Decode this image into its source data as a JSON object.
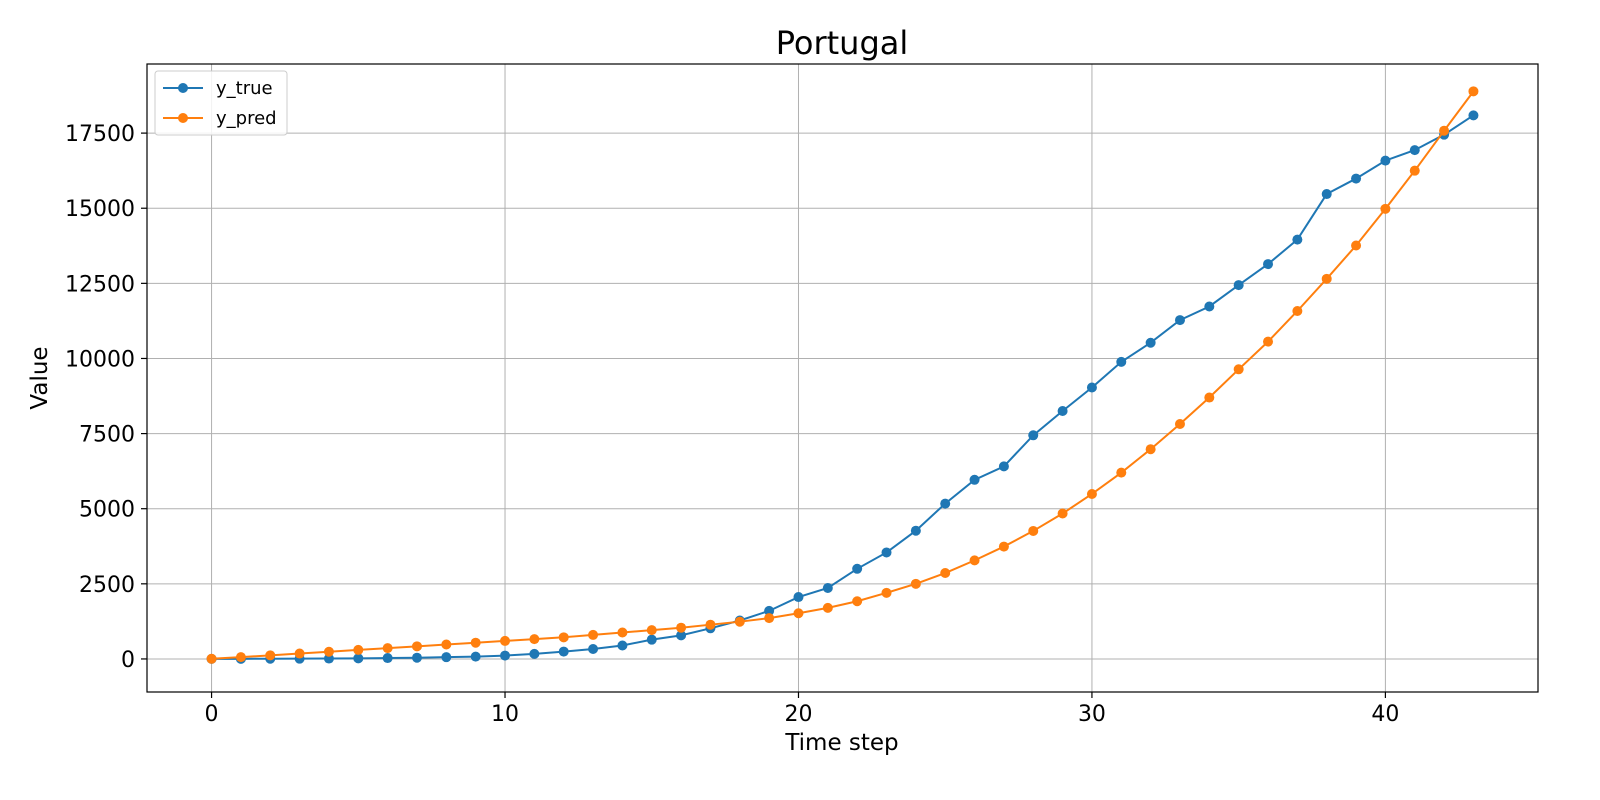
{
  "chart_data": {
    "type": "line",
    "title": "Portugal",
    "xlabel": "Time step",
    "ylabel": "Value",
    "xlim": [
      -2.2,
      45.2
    ],
    "ylim": [
      -1100,
      19800
    ],
    "xticks": [
      0,
      10,
      20,
      30,
      40
    ],
    "yticks": [
      0,
      2500,
      5000,
      7500,
      10000,
      12500,
      15000,
      17500
    ],
    "grid": true,
    "legend": "top-left",
    "x": [
      0,
      1,
      2,
      3,
      4,
      5,
      6,
      7,
      8,
      9,
      10,
      11,
      12,
      13,
      14,
      15,
      16,
      17,
      18,
      19,
      20,
      21,
      22,
      23,
      24,
      25,
      26,
      27,
      28,
      29,
      30,
      31,
      32,
      33,
      34,
      35,
      36,
      37,
      38,
      39,
      40,
      41,
      42,
      43
    ],
    "series": [
      {
        "name": "y_true",
        "color": "#1f77b4",
        "values": [
          2,
          4,
          6,
          9,
          13,
          21,
          30,
          41,
          59,
          78,
          112,
          169,
          245,
          331,
          448,
          642,
          785,
          1020,
          1280,
          1600,
          2060,
          2362,
          3000,
          3544,
          4268,
          5170,
          5962,
          6408,
          7443,
          8251,
          9034,
          9886,
          10524,
          11278,
          11730,
          12442,
          13141,
          13956,
          15472,
          15987,
          16585,
          16934,
          17448,
          18091
        ]
      },
      {
        "name": "y_pred",
        "color": "#ff7f0e",
        "values": [
          5,
          60,
          120,
          180,
          240,
          300,
          360,
          420,
          480,
          540,
          600,
          660,
          720,
          800,
          880,
          960,
          1040,
          1140,
          1240,
          1360,
          1520,
          1700,
          1920,
          2200,
          2500,
          2860,
          3280,
          3740,
          4260,
          4840,
          5490,
          6200,
          6980,
          7820,
          8700,
          9640,
          10560,
          11580,
          12650,
          13760,
          14980,
          16250,
          17580,
          18890
        ]
      }
    ]
  }
}
